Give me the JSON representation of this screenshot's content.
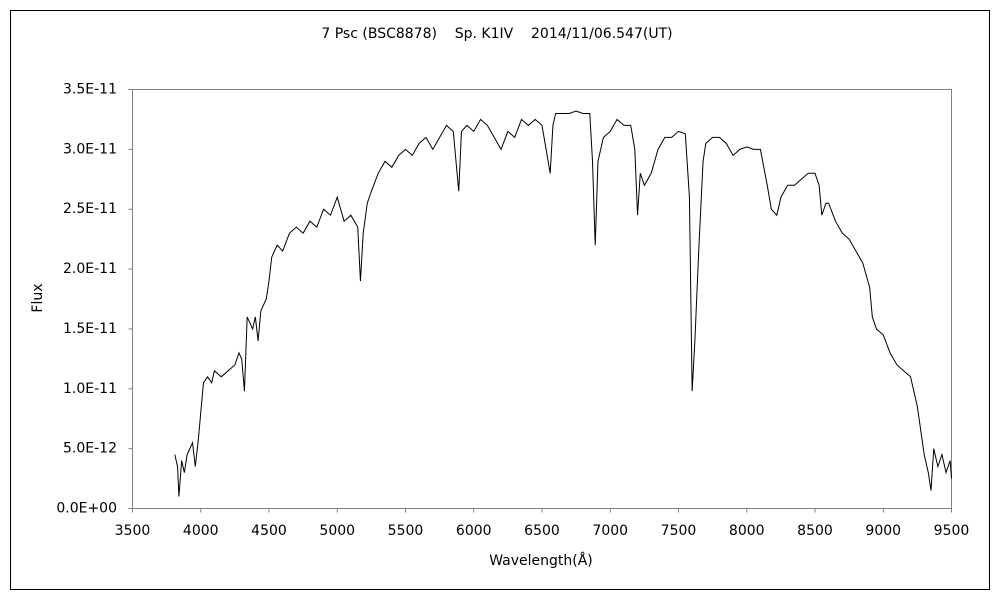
{
  "chart_data": {
    "type": "line",
    "title": "7 Psc (BSC8878)    Sp. K1IV    2014/11/06.547(UT)",
    "x_label": "Wavelength(Å)",
    "y_label": "Flux",
    "xlim": [
      3500,
      9500
    ],
    "xticks": [
      3500,
      4000,
      4500,
      5000,
      5500,
      6000,
      6500,
      7000,
      7500,
      8000,
      8500,
      9000,
      9500
    ],
    "ylim": [
      0,
      3.5e-11
    ],
    "yticks": [
      {
        "value": 0,
        "label": "0.0E+00"
      },
      {
        "value": 5e-12,
        "label": "5.0E-12"
      },
      {
        "value": 1e-11,
        "label": "1.0E-11"
      },
      {
        "value": 1.5e-11,
        "label": "1.5E-11"
      },
      {
        "value": 2e-11,
        "label": "2.0E-11"
      },
      {
        "value": 2.5e-11,
        "label": "2.5E-11"
      },
      {
        "value": 3e-11,
        "label": "3.0E-11"
      },
      {
        "value": 3.5e-11,
        "label": "3.5E-11"
      }
    ],
    "grid": false,
    "series": [
      {
        "color": "#000000",
        "x": [
          3810,
          3830,
          3840,
          3860,
          3880,
          3900,
          3920,
          3940,
          3960,
          3980,
          4000,
          4020,
          4050,
          4080,
          4100,
          4150,
          4200,
          4250,
          4280,
          4300,
          4320,
          4340,
          4380,
          4400,
          4420,
          4440,
          4480,
          4500,
          4520,
          4560,
          4600,
          4650,
          4700,
          4750,
          4800,
          4850,
          4900,
          4950,
          5000,
          5050,
          5100,
          5150,
          5170,
          5190,
          5220,
          5250,
          5300,
          5350,
          5400,
          5450,
          5500,
          5550,
          5600,
          5650,
          5700,
          5750,
          5800,
          5850,
          5890,
          5910,
          5950,
          6000,
          6050,
          6100,
          6150,
          6200,
          6250,
          6300,
          6350,
          6400,
          6450,
          6500,
          6530,
          6560,
          6580,
          6600,
          6650,
          6700,
          6750,
          6800,
          6850,
          6870,
          6890,
          6910,
          6950,
          7000,
          7050,
          7100,
          7150,
          7180,
          7200,
          7220,
          7250,
          7300,
          7350,
          7400,
          7450,
          7500,
          7550,
          7580,
          7600,
          7620,
          7650,
          7680,
          7700,
          7750,
          7800,
          7850,
          7900,
          7950,
          8000,
          8050,
          8100,
          8150,
          8180,
          8220,
          8250,
          8300,
          8350,
          8400,
          8450,
          8500,
          8530,
          8550,
          8580,
          8600,
          8650,
          8700,
          8750,
          8800,
          8850,
          8900,
          8920,
          8950,
          9000,
          9050,
          9100,
          9150,
          9200,
          9250,
          9300,
          9330,
          9350,
          9370,
          9400,
          9430,
          9460,
          9490,
          9500
        ],
        "values": [
          4.5e-12,
          3.5e-12,
          1e-12,
          4e-12,
          3e-12,
          4.5e-12,
          5e-12,
          5.5e-12,
          3.5e-12,
          5.5e-12,
          8e-12,
          1.05e-11,
          1.1e-11,
          1.05e-11,
          1.15e-11,
          1.1e-11,
          1.15e-11,
          1.2e-11,
          1.3e-11,
          1.25e-11,
          9.8e-12,
          1.6e-11,
          1.5e-11,
          1.6e-11,
          1.4e-11,
          1.65e-11,
          1.75e-11,
          1.9e-11,
          2.1e-11,
          2.2e-11,
          2.15e-11,
          2.3e-11,
          2.35e-11,
          2.3e-11,
          2.4e-11,
          2.35e-11,
          2.5e-11,
          2.45e-11,
          2.6e-11,
          2.4e-11,
          2.45e-11,
          2.35e-11,
          1.9e-11,
          2.3e-11,
          2.55e-11,
          2.65e-11,
          2.8e-11,
          2.9e-11,
          2.85e-11,
          2.95e-11,
          3e-11,
          2.95e-11,
          3.05e-11,
          3.1e-11,
          3e-11,
          3.1e-11,
          3.2e-11,
          3.15e-11,
          2.65e-11,
          3.15e-11,
          3.2e-11,
          3.15e-11,
          3.25e-11,
          3.2e-11,
          3.1e-11,
          3e-11,
          3.15e-11,
          3.1e-11,
          3.25e-11,
          3.2e-11,
          3.25e-11,
          3.2e-11,
          3e-11,
          2.8e-11,
          3.2e-11,
          3.3e-11,
          3.3e-11,
          3.3e-11,
          3.32e-11,
          3.3e-11,
          3.3e-11,
          2.9e-11,
          2.2e-11,
          2.9e-11,
          3.1e-11,
          3.15e-11,
          3.25e-11,
          3.2e-11,
          3.2e-11,
          3e-11,
          2.45e-11,
          2.8e-11,
          2.7e-11,
          2.8e-11,
          3e-11,
          3.1e-11,
          3.1e-11,
          3.15e-11,
          3.13e-11,
          2.6e-11,
          9.8e-12,
          1.4e-11,
          2.2e-11,
          2.9e-11,
          3.05e-11,
          3.1e-11,
          3.1e-11,
          3.05e-11,
          2.95e-11,
          3e-11,
          3.02e-11,
          3e-11,
          3e-11,
          2.7e-11,
          2.5e-11,
          2.45e-11,
          2.6e-11,
          2.7e-11,
          2.7e-11,
          2.75e-11,
          2.8e-11,
          2.8e-11,
          2.7e-11,
          2.45e-11,
          2.55e-11,
          2.55e-11,
          2.4e-11,
          2.3e-11,
          2.25e-11,
          2.15e-11,
          2.05e-11,
          1.85e-11,
          1.6e-11,
          1.5e-11,
          1.45e-11,
          1.3e-11,
          1.2e-11,
          1.15e-11,
          1.1e-11,
          8.5e-12,
          4.5e-12,
          3e-12,
          1.5e-12,
          5e-12,
          3.5e-12,
          4.5e-12,
          3e-12,
          4e-12,
          2.5e-12
        ]
      }
    ]
  }
}
